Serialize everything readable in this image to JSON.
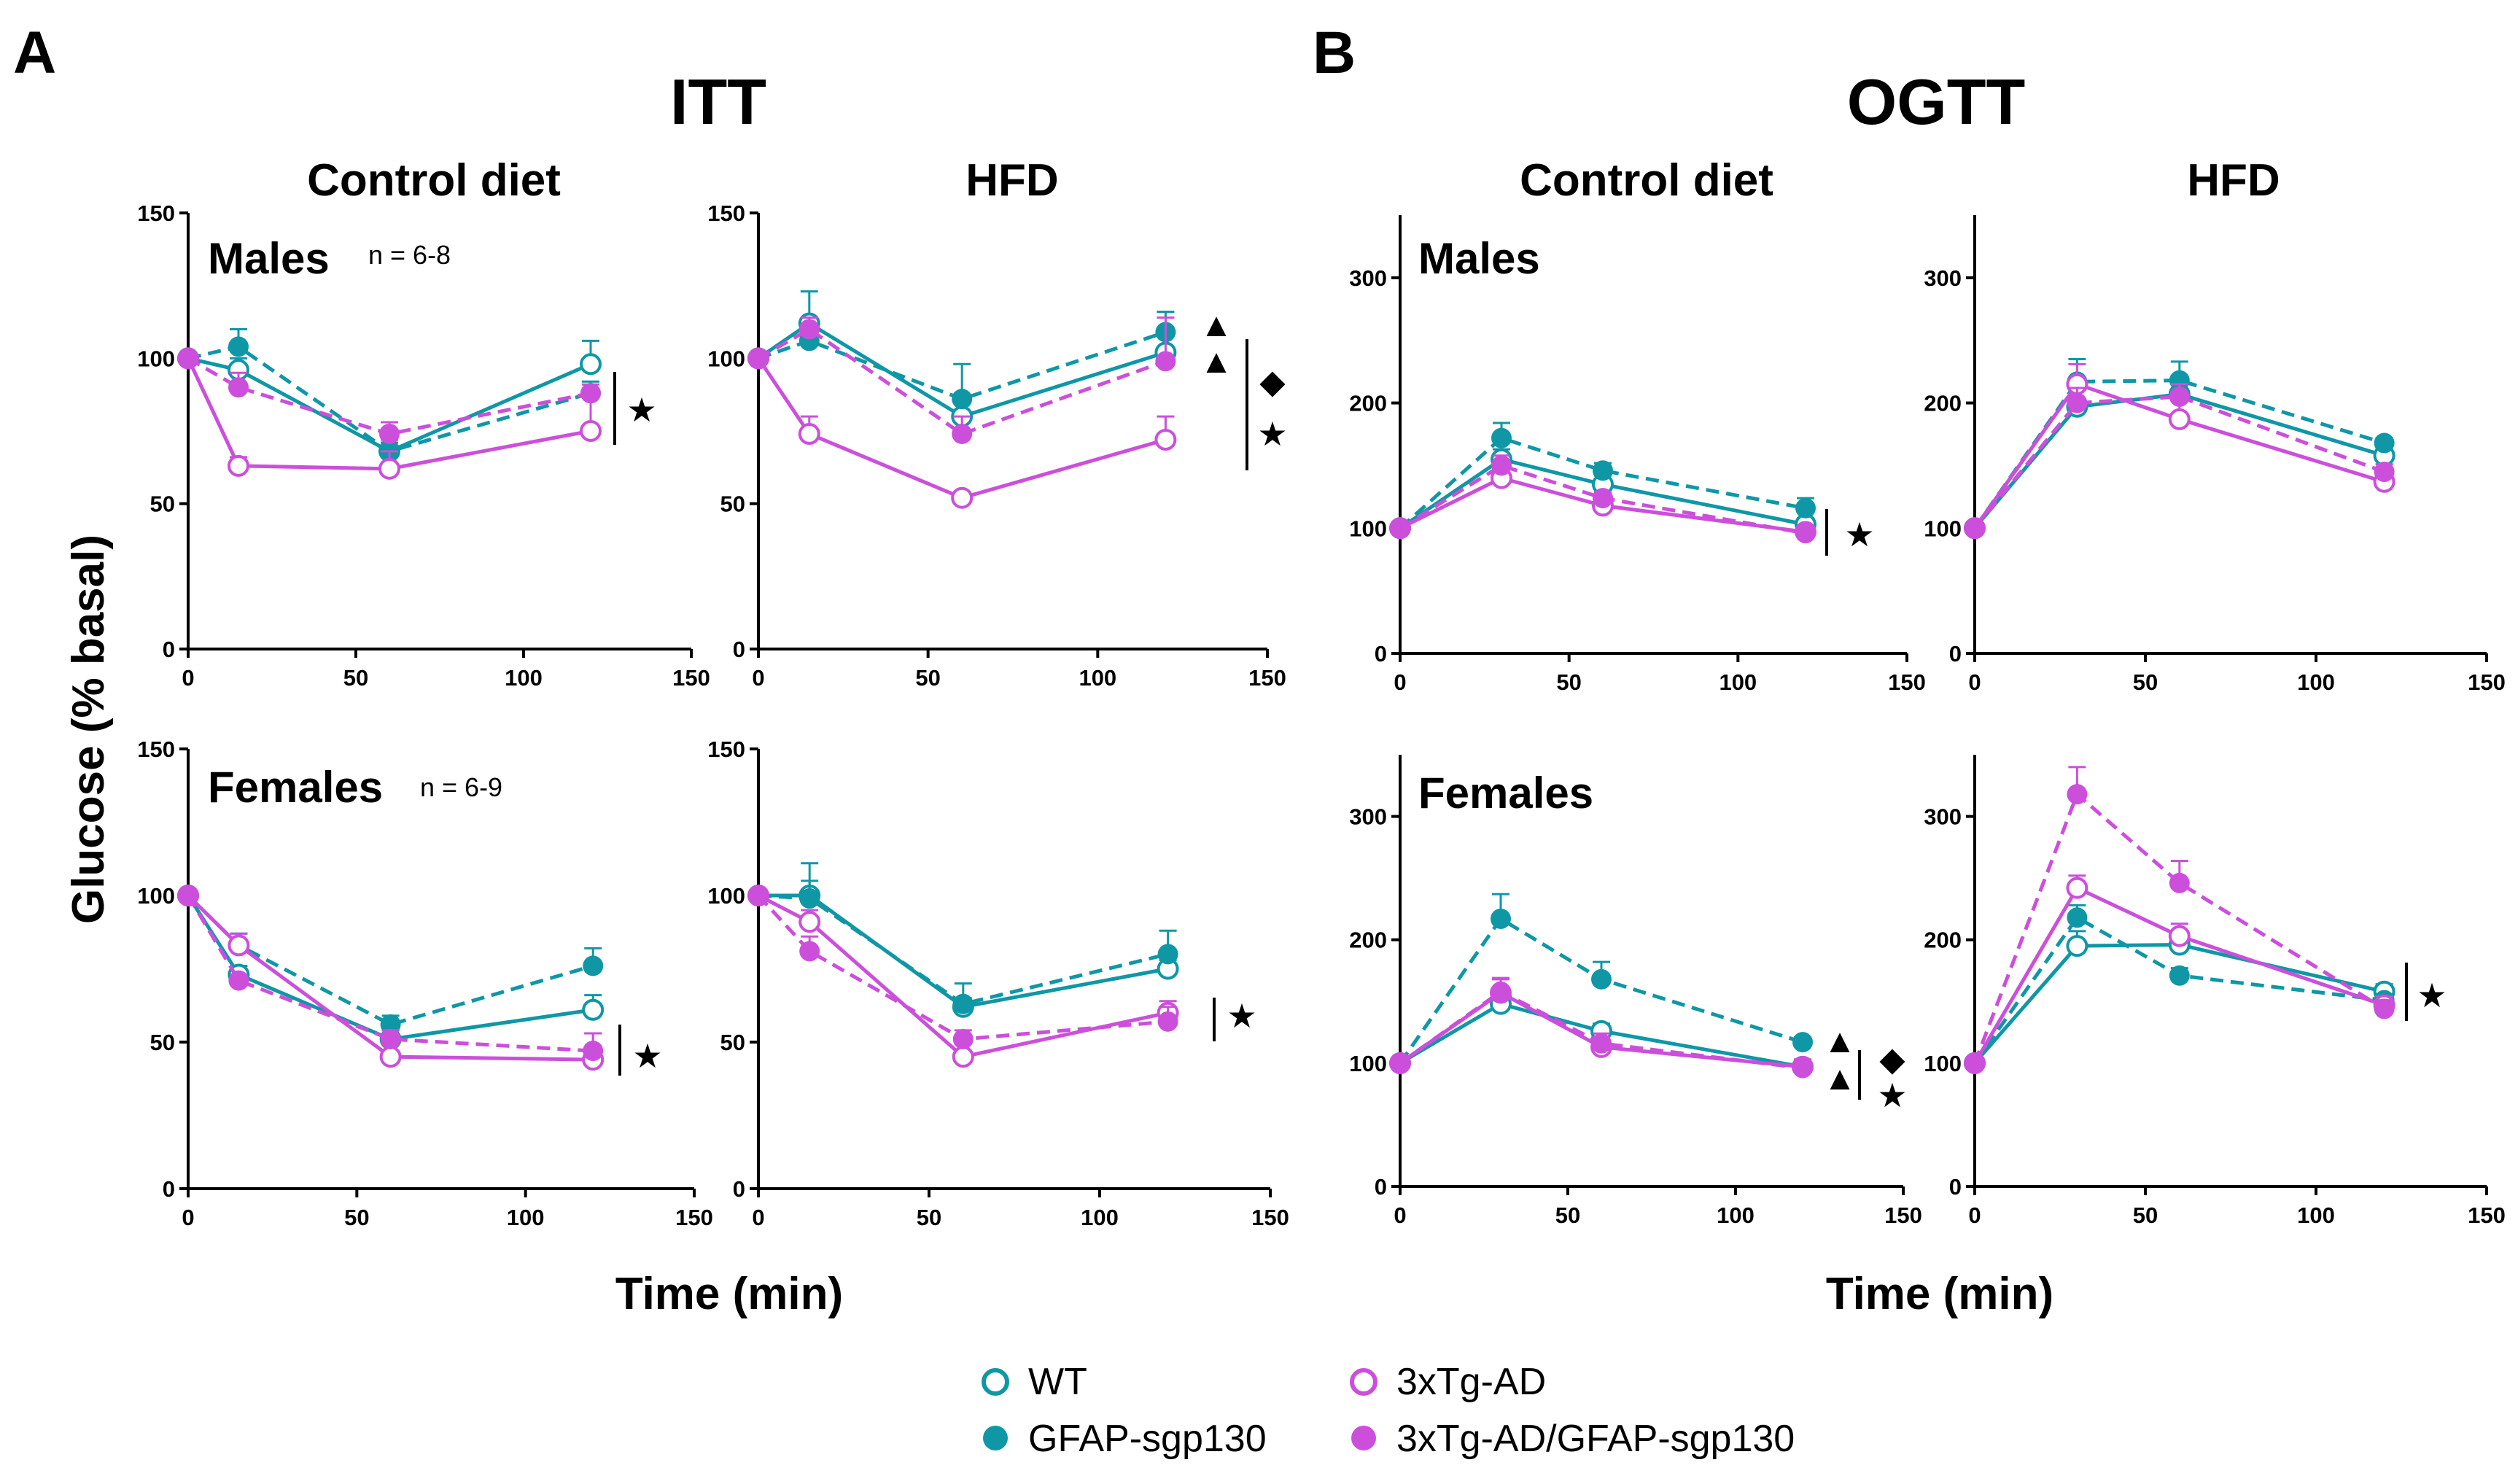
{
  "figure": {
    "panel_a_letter": "A",
    "panel_b_letter": "B",
    "panel_a_title": "ITT",
    "panel_b_title": "OGTT",
    "col_control": "Control diet",
    "col_hfd": "HFD",
    "row_males": "Males",
    "row_females": "Females",
    "n_males": "n = 6-8",
    "n_females": "n = 6-9",
    "ylabel": "Glucose (% basal)",
    "xlabel": "Time (min)"
  },
  "legend": {
    "wt": "WT",
    "gfap": "GFAP-sgp130",
    "tg": "3xTg-AD",
    "tg_gfap": "3xTg-AD/GFAP-sgp130"
  },
  "colors": {
    "teal": "#0f97a6",
    "magenta": "#cc4fdb",
    "black": "#000000"
  },
  "chart_data": [
    {
      "type": "line",
      "id": "itt-male-control",
      "panel": "A",
      "title": "Control diet",
      "row": "Males",
      "xlim": [
        0,
        150
      ],
      "ylim": [
        0,
        150
      ],
      "xticks": [
        0,
        50,
        100,
        150
      ],
      "yticks": [
        0,
        50,
        100,
        150
      ],
      "x": [
        0,
        15,
        60,
        120
      ],
      "series": [
        {
          "name": "WT",
          "values": [
            100,
            96,
            68,
            98
          ],
          "err": [
            0,
            4,
            3,
            8
          ]
        },
        {
          "name": "GFAP-sgp130",
          "values": [
            100,
            104,
            68,
            88
          ],
          "err": [
            0,
            6,
            4,
            4
          ]
        },
        {
          "name": "3xTg-AD",
          "values": [
            100,
            63,
            62,
            75
          ],
          "err": [
            0,
            3,
            6,
            13
          ]
        },
        {
          "name": "3xTg-AD/GFAP-sgp130",
          "values": [
            100,
            90,
            74,
            88
          ],
          "err": [
            0,
            5,
            4,
            3
          ]
        }
      ],
      "annotations": [
        "★"
      ]
    },
    {
      "type": "line",
      "id": "itt-male-hfd",
      "panel": "A",
      "title": "HFD",
      "row": "Males",
      "xlim": [
        0,
        150
      ],
      "ylim": [
        0,
        150
      ],
      "xticks": [
        0,
        50,
        100,
        150
      ],
      "yticks": [
        0,
        50,
        100,
        150
      ],
      "x": [
        0,
        15,
        60,
        120
      ],
      "series": [
        {
          "name": "WT",
          "values": [
            100,
            112,
            80,
            102
          ],
          "err": [
            0,
            11,
            5,
            6
          ]
        },
        {
          "name": "GFAP-sgp130",
          "values": [
            100,
            106,
            86,
            109
          ],
          "err": [
            0,
            4,
            12,
            7
          ]
        },
        {
          "name": "3xTg-AD",
          "values": [
            100,
            74,
            52,
            72
          ],
          "err": [
            0,
            6,
            2,
            8
          ]
        },
        {
          "name": "3xTg-AD/GFAP-sgp130",
          "values": [
            100,
            110,
            74,
            99
          ],
          "err": [
            0,
            4,
            6,
            15
          ]
        }
      ],
      "annotations": [
        "▲",
        "▲",
        "◆",
        "★"
      ]
    },
    {
      "type": "line",
      "id": "itt-female-control",
      "panel": "A",
      "title": "Control diet",
      "row": "Females",
      "xlim": [
        0,
        150
      ],
      "ylim": [
        0,
        150
      ],
      "xticks": [
        0,
        50,
        100,
        150
      ],
      "yticks": [
        0,
        50,
        100,
        150
      ],
      "x": [
        0,
        15,
        60,
        120
      ],
      "series": [
        {
          "name": "WT",
          "values": [
            100,
            73,
            51,
            61
          ],
          "err": [
            0,
            3,
            3,
            5
          ]
        },
        {
          "name": "GFAP-sgp130",
          "values": [
            100,
            83,
            56,
            76
          ],
          "err": [
            0,
            4,
            3,
            6
          ]
        },
        {
          "name": "3xTg-AD",
          "values": [
            100,
            83,
            45,
            44
          ],
          "err": [
            0,
            4,
            5,
            9
          ]
        },
        {
          "name": "3xTg-AD/GFAP-sgp130",
          "values": [
            100,
            71,
            51,
            47
          ],
          "err": [
            0,
            2,
            3,
            6
          ]
        }
      ],
      "annotations": [
        "★"
      ]
    },
    {
      "type": "line",
      "id": "itt-female-hfd",
      "panel": "A",
      "title": "HFD",
      "row": "Females",
      "xlim": [
        0,
        150
      ],
      "ylim": [
        0,
        150
      ],
      "xticks": [
        0,
        50,
        100,
        150
      ],
      "yticks": [
        0,
        50,
        100,
        150
      ],
      "x": [
        0,
        15,
        60,
        120
      ],
      "series": [
        {
          "name": "WT",
          "values": [
            100,
            100,
            62,
            75
          ],
          "err": [
            0,
            5,
            3,
            3
          ]
        },
        {
          "name": "GFAP-sgp130",
          "values": [
            100,
            99,
            63,
            80
          ],
          "err": [
            0,
            12,
            7,
            8
          ]
        },
        {
          "name": "3xTg-AD",
          "values": [
            100,
            91,
            45,
            60
          ],
          "err": [
            0,
            4,
            2,
            4
          ]
        },
        {
          "name": "3xTg-AD/GFAP-sgp130",
          "values": [
            100,
            81,
            51,
            57
          ],
          "err": [
            0,
            5,
            3,
            5
          ]
        }
      ],
      "annotations": [
        "★"
      ]
    },
    {
      "type": "line",
      "id": "ogtt-male-control",
      "panel": "B",
      "title": "Control diet",
      "row": "Males",
      "xlim": [
        0,
        150
      ],
      "ylim": [
        0,
        350
      ],
      "xticks": [
        0,
        50,
        100,
        150
      ],
      "yticks": [
        0,
        100,
        200,
        300
      ],
      "x": [
        0,
        30,
        60,
        120
      ],
      "series": [
        {
          "name": "WT",
          "values": [
            100,
            155,
            135,
            103
          ],
          "err": [
            0,
            8,
            7,
            5
          ]
        },
        {
          "name": "GFAP-sgp130",
          "values": [
            100,
            172,
            146,
            116
          ],
          "err": [
            0,
            12,
            6,
            8
          ]
        },
        {
          "name": "3xTg-AD",
          "values": [
            100,
            140,
            118,
            97
          ],
          "err": [
            0,
            7,
            6,
            4
          ]
        },
        {
          "name": "3xTg-AD/GFAP-sgp130",
          "values": [
            100,
            150,
            124,
            96
          ],
          "err": [
            0,
            8,
            5,
            4
          ]
        }
      ],
      "annotations": [
        "★"
      ]
    },
    {
      "type": "line",
      "id": "ogtt-male-hfd",
      "panel": "B",
      "title": "HFD",
      "row": "Males",
      "xlim": [
        0,
        150
      ],
      "ylim": [
        0,
        350
      ],
      "xticks": [
        0,
        50,
        100,
        150
      ],
      "yticks": [
        0,
        100,
        200,
        300
      ],
      "x": [
        0,
        30,
        60,
        120
      ],
      "series": [
        {
          "name": "WT",
          "values": [
            100,
            197,
            207,
            158
          ],
          "err": [
            0,
            16,
            12,
            6
          ]
        },
        {
          "name": "GFAP-sgp130",
          "values": [
            100,
            217,
            218,
            168
          ],
          "err": [
            0,
            18,
            15,
            4
          ]
        },
        {
          "name": "3xTg-AD",
          "values": [
            100,
            215,
            187,
            137
          ],
          "err": [
            0,
            16,
            20,
            10
          ]
        },
        {
          "name": "3xTg-AD/GFAP-sgp130",
          "values": [
            100,
            200,
            205,
            145
          ],
          "err": [
            0,
            12,
            10,
            6
          ]
        }
      ],
      "annotations": []
    },
    {
      "type": "line",
      "id": "ogtt-female-control",
      "panel": "B",
      "title": "Control diet",
      "row": "Females",
      "xlim": [
        0,
        150
      ],
      "ylim": [
        0,
        350
      ],
      "xticks": [
        0,
        50,
        100,
        150
      ],
      "yticks": [
        0,
        100,
        200,
        300
      ],
      "x": [
        0,
        30,
        60,
        120
      ],
      "series": [
        {
          "name": "WT",
          "values": [
            100,
            148,
            126,
            97
          ],
          "err": [
            0,
            9,
            6,
            4
          ]
        },
        {
          "name": "GFAP-sgp130",
          "values": [
            100,
            217,
            168,
            117
          ],
          "err": [
            0,
            20,
            14,
            4
          ]
        },
        {
          "name": "3xTg-AD",
          "values": [
            100,
            157,
            113,
            97
          ],
          "err": [
            0,
            12,
            8,
            6
          ]
        },
        {
          "name": "3xTg-AD/GFAP-sgp130",
          "values": [
            100,
            158,
            116,
            96
          ],
          "err": [
            0,
            10,
            8,
            5
          ]
        }
      ],
      "annotations": [
        "▲",
        "▲",
        "◆",
        "★"
      ]
    },
    {
      "type": "line",
      "id": "ogtt-female-hfd",
      "panel": "B",
      "title": "HFD",
      "row": "Females",
      "xlim": [
        0,
        150
      ],
      "ylim": [
        0,
        350
      ],
      "xticks": [
        0,
        50,
        100,
        150
      ],
      "yticks": [
        0,
        100,
        200,
        300
      ],
      "x": [
        0,
        30,
        60,
        120
      ],
      "series": [
        {
          "name": "WT",
          "values": [
            100,
            195,
            196,
            158
          ],
          "err": [
            0,
            12,
            8,
            6
          ]
        },
        {
          "name": "GFAP-sgp130",
          "values": [
            100,
            218,
            171,
            151
          ],
          "err": [
            0,
            10,
            6,
            5
          ]
        },
        {
          "name": "3xTg-AD",
          "values": [
            100,
            242,
            203,
            147
          ],
          "err": [
            0,
            10,
            10,
            7
          ]
        },
        {
          "name": "3xTg-AD/GFAP-sgp130",
          "values": [
            100,
            318,
            246,
            144
          ],
          "err": [
            0,
            22,
            18,
            7
          ]
        }
      ],
      "annotations": [
        "★"
      ]
    }
  ]
}
